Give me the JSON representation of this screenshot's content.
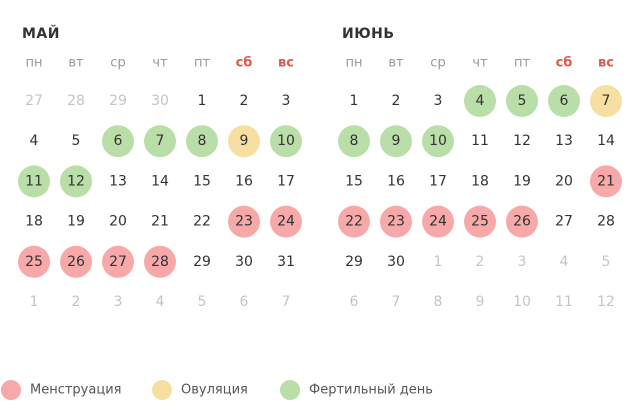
{
  "months": [
    {
      "title": "МАЙ",
      "weekdays": [
        {
          "label": "пн"
        },
        {
          "label": "вт"
        },
        {
          "label": "ср"
        },
        {
          "label": "чт"
        },
        {
          "label": "пт"
        },
        {
          "label": "сб",
          "weekend": true
        },
        {
          "label": "вс",
          "weekend": true
        }
      ],
      "weeks": [
        [
          {
            "day": "27",
            "muted": true
          },
          {
            "day": "28",
            "muted": true
          },
          {
            "day": "29",
            "muted": true
          },
          {
            "day": "30",
            "muted": true
          },
          {
            "day": "1"
          },
          {
            "day": "2"
          },
          {
            "day": "3"
          }
        ],
        [
          {
            "day": "4"
          },
          {
            "day": "5"
          },
          {
            "day": "6",
            "mark": 2
          },
          {
            "day": "7",
            "mark": 2
          },
          {
            "day": "8",
            "mark": 2
          },
          {
            "day": "9",
            "mark": 1
          },
          {
            "day": "10",
            "mark": 2
          }
        ],
        [
          {
            "day": "11",
            "mark": 2
          },
          {
            "day": "12",
            "mark": 2
          },
          {
            "day": "13"
          },
          {
            "day": "14"
          },
          {
            "day": "15"
          },
          {
            "day": "16"
          },
          {
            "day": "17"
          }
        ],
        [
          {
            "day": "18"
          },
          {
            "day": "19"
          },
          {
            "day": "20"
          },
          {
            "day": "21"
          },
          {
            "day": "22"
          },
          {
            "day": "23",
            "mark": 0
          },
          {
            "day": "24",
            "mark": 0
          }
        ],
        [
          {
            "day": "25",
            "mark": 0
          },
          {
            "day": "26",
            "mark": 0
          },
          {
            "day": "27",
            "mark": 0
          },
          {
            "day": "28",
            "mark": 0
          },
          {
            "day": "29"
          },
          {
            "day": "30"
          },
          {
            "day": "31"
          }
        ],
        [
          {
            "day": "1",
            "muted": true
          },
          {
            "day": "2",
            "muted": true
          },
          {
            "day": "3",
            "muted": true
          },
          {
            "day": "4",
            "muted": true
          },
          {
            "day": "5",
            "muted": true
          },
          {
            "day": "6",
            "muted": true
          },
          {
            "day": "7",
            "muted": true
          }
        ]
      ]
    },
    {
      "title": "ИЮНЬ",
      "weekdays": [
        {
          "label": "пн"
        },
        {
          "label": "вт"
        },
        {
          "label": "ср"
        },
        {
          "label": "чт"
        },
        {
          "label": "пт"
        },
        {
          "label": "сб",
          "weekend": true
        },
        {
          "label": "вс",
          "weekend": true
        }
      ],
      "weeks": [
        [
          {
            "day": "1"
          },
          {
            "day": "2"
          },
          {
            "day": "3"
          },
          {
            "day": "4",
            "mark": 2
          },
          {
            "day": "5",
            "mark": 2
          },
          {
            "day": "6",
            "mark": 2
          },
          {
            "day": "7",
            "mark": 1
          }
        ],
        [
          {
            "day": "8",
            "mark": 2
          },
          {
            "day": "9",
            "mark": 2
          },
          {
            "day": "10",
            "mark": 2
          },
          {
            "day": "11"
          },
          {
            "day": "12"
          },
          {
            "day": "13"
          },
          {
            "day": "14"
          }
        ],
        [
          {
            "day": "15"
          },
          {
            "day": "16"
          },
          {
            "day": "17"
          },
          {
            "day": "18"
          },
          {
            "day": "19"
          },
          {
            "day": "20"
          },
          {
            "day": "21",
            "mark": 0
          }
        ],
        [
          {
            "day": "22",
            "mark": 0
          },
          {
            "day": "23",
            "mark": 0
          },
          {
            "day": "24",
            "mark": 0
          },
          {
            "day": "25",
            "mark": 0
          },
          {
            "day": "26",
            "mark": 0
          },
          {
            "day": "27"
          },
          {
            "day": "28"
          }
        ],
        [
          {
            "day": "29"
          },
          {
            "day": "30"
          },
          {
            "day": "1",
            "muted": true
          },
          {
            "day": "2",
            "muted": true
          },
          {
            "day": "3",
            "muted": true
          },
          {
            "day": "4",
            "muted": true
          },
          {
            "day": "5",
            "muted": true
          }
        ],
        [
          {
            "day": "6",
            "muted": true
          },
          {
            "day": "7",
            "muted": true
          },
          {
            "day": "8",
            "muted": true
          },
          {
            "day": "9",
            "muted": true
          },
          {
            "day": "10",
            "muted": true
          },
          {
            "day": "11",
            "muted": true
          },
          {
            "day": "12",
            "muted": true
          }
        ]
      ]
    }
  ],
  "legend": [
    {
      "label": "Менструация",
      "color": "#f6a9a8"
    },
    {
      "label": "Овуляция",
      "color": "#f6dfa0"
    },
    {
      "label": "Фертильный день",
      "color": "#b9dea8"
    }
  ]
}
